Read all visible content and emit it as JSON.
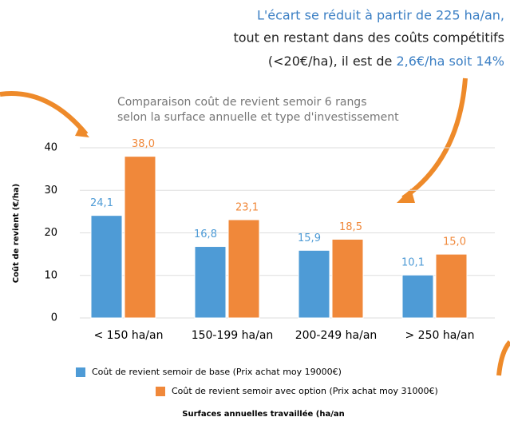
{
  "chart_data": {
    "type": "bar",
    "annotation": [
      "L'écart se réduit à partir de 225 ha/an,",
      "tout en restant dans des coûts compétitifs",
      "(<20€/ha), il est de ",
      "2,6€/ha soit 14%"
    ],
    "title": "Comparaison coût de revient semoir 6 rangs",
    "subtitle": "selon la surface annuelle et type d'investissement",
    "y_label": "Coût de revient (€/ha)",
    "x_label": "Surfaces annuelles travaillée (ha/an",
    "categories": [
      "< 150 ha/an",
      "150-199 ha/an",
      "200-249 ha/an",
      "> 250 ha/an"
    ],
    "series": [
      {
        "name": "Coût de revient semoir de base (Prix achat moy 19000€)",
        "color": "#4e9bd6",
        "values": [
          24.1,
          16.8,
          15.9,
          10.1
        ],
        "value_labels": [
          "24,1",
          "16,8",
          "15,9",
          "10,1"
        ]
      },
      {
        "name": "Coût de revient semoir avec option (Prix achat moy 31000€)",
        "color": "#f0883a",
        "values": [
          38.0,
          23.1,
          18.5,
          15.0
        ],
        "value_labels": [
          "38,0",
          "23,1",
          "18,5",
          "15,0"
        ]
      }
    ],
    "ylim": [
      0,
      40
    ],
    "yticks": [
      0,
      10,
      20,
      30,
      40
    ],
    "grid": true
  }
}
